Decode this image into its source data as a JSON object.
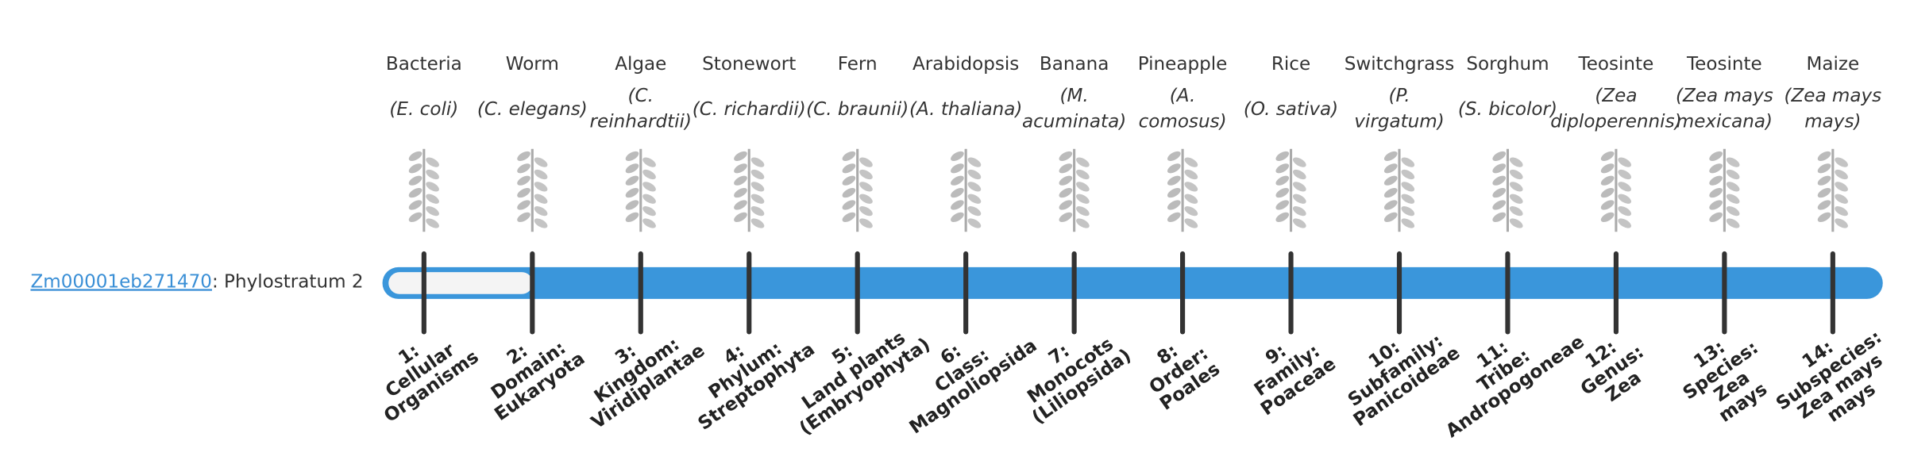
{
  "gene": {
    "id": "Zm00001eb271470",
    "text": ": Phylostratum 2"
  },
  "strata": [
    {
      "organism": "Bacteria",
      "species": [
        "(E. coli)"
      ],
      "label": [
        "1:",
        "Cellular",
        "Organisms"
      ]
    },
    {
      "organism": "Worm",
      "species": [
        "(C. elegans)"
      ],
      "label": [
        "2:",
        "Domain:",
        "Eukaryota"
      ]
    },
    {
      "organism": "Algae",
      "species": [
        "(C.",
        "reinhardtii)"
      ],
      "label": [
        "3:",
        "Kingdom:",
        "Viridiplantae"
      ]
    },
    {
      "organism": "Stonewort",
      "species": [
        "(C. richardii)"
      ],
      "label": [
        "4:",
        "Phylum:",
        "Streptophyta"
      ]
    },
    {
      "organism": "Fern",
      "species": [
        "(C. braunii)"
      ],
      "label": [
        "5:",
        "Land plants",
        "(Embryophyta)"
      ]
    },
    {
      "organism": "Arabidopsis",
      "species": [
        "(A. thaliana)"
      ],
      "label": [
        "6:",
        "Class:",
        "Magnoliopsida"
      ]
    },
    {
      "organism": "Banana",
      "species": [
        "(M.",
        "acuminata)"
      ],
      "label": [
        "7:",
        "Monocots",
        "(Liliopsida)"
      ]
    },
    {
      "organism": "Pineapple",
      "species": [
        "(A.",
        "comosus)"
      ],
      "label": [
        "8:",
        "Order:",
        "Poales"
      ]
    },
    {
      "organism": "Rice",
      "species": [
        "(O. sativa)"
      ],
      "label": [
        "9:",
        "Family:",
        "Poaceae"
      ]
    },
    {
      "organism": "Switchgrass",
      "species": [
        "(P.",
        "virgatum)"
      ],
      "label": [
        "10:",
        "Subfamily:",
        "Panicoideae"
      ]
    },
    {
      "organism": "Sorghum",
      "species": [
        "(S. bicolor)"
      ],
      "label": [
        "11:",
        "Tribe:",
        "Andropogoneae"
      ]
    },
    {
      "organism": "Teosinte",
      "species": [
        "(Zea",
        "diploperennis)"
      ],
      "label": [
        "12:",
        "Genus:",
        "Zea"
      ]
    },
    {
      "organism": "Teosinte",
      "species": [
        "(Zea mays",
        "mexicana)"
      ],
      "label": [
        "13:",
        "Species:",
        "Zea",
        "mays"
      ]
    },
    {
      "organism": "Maize",
      "species": [
        "(Zea mays",
        "mays)"
      ],
      "label": [
        "14:",
        "Subspecies:",
        "Zea mays",
        "mays"
      ]
    }
  ]
}
